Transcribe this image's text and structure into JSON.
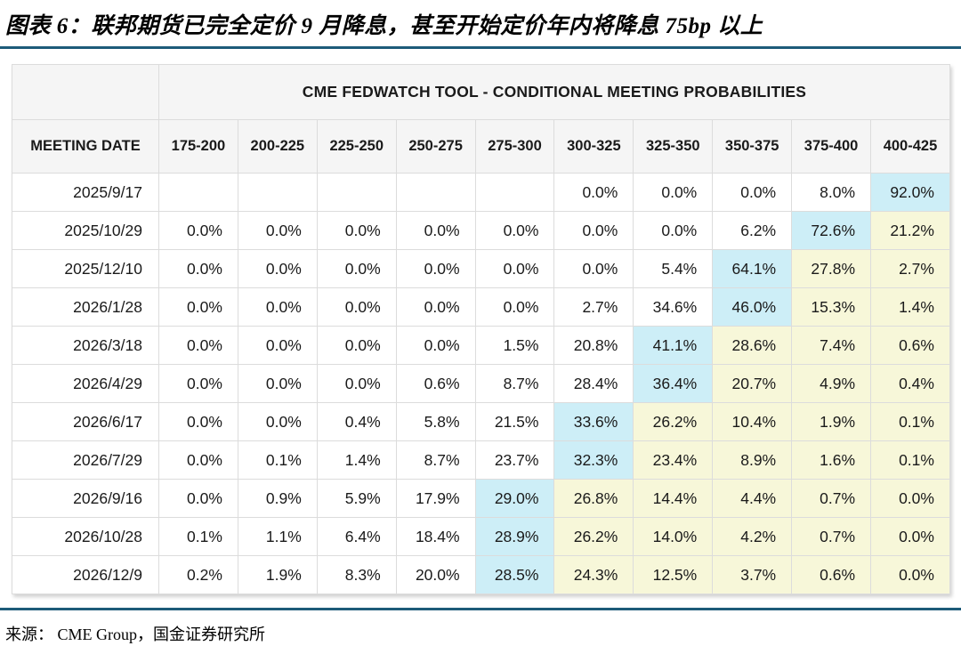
{
  "figure": {
    "title": "图表 6：联邦期货已完全定价 9 月降息，甚至开始定价年内将降息 75bp 以上",
    "source": "来源： CME Group，国金证券研究所"
  },
  "colors": {
    "accent_line": "#1d5b79",
    "header_bg": "#f5f5f5",
    "highlight_max": "#cdeef7",
    "highlight_tail": "#f7f7d9",
    "grid_line": "#dcdcdc"
  },
  "chart_data": {
    "type": "table",
    "title": "CME FEDWATCH TOOL - CONDITIONAL MEETING PROBABILITIES",
    "date_column_header": "MEETING DATE",
    "rate_columns": [
      "175-200",
      "200-225",
      "225-250",
      "250-275",
      "275-300",
      "300-325",
      "325-350",
      "350-375",
      "375-400",
      "400-425"
    ],
    "highlight_key": {
      "max": "highlight_max",
      "tail": "highlight_tail"
    },
    "rows": [
      {
        "date": "2025/9/17",
        "cells": [
          {
            "v": "",
            "hl": "none"
          },
          {
            "v": "",
            "hl": "none"
          },
          {
            "v": "",
            "hl": "none"
          },
          {
            "v": "",
            "hl": "none"
          },
          {
            "v": "",
            "hl": "none"
          },
          {
            "v": "0.0%",
            "hl": "none"
          },
          {
            "v": "0.0%",
            "hl": "none"
          },
          {
            "v": "0.0%",
            "hl": "none"
          },
          {
            "v": "8.0%",
            "hl": "none"
          },
          {
            "v": "92.0%",
            "hl": "max"
          }
        ]
      },
      {
        "date": "2025/10/29",
        "cells": [
          {
            "v": "0.0%",
            "hl": "none"
          },
          {
            "v": "0.0%",
            "hl": "none"
          },
          {
            "v": "0.0%",
            "hl": "none"
          },
          {
            "v": "0.0%",
            "hl": "none"
          },
          {
            "v": "0.0%",
            "hl": "none"
          },
          {
            "v": "0.0%",
            "hl": "none"
          },
          {
            "v": "0.0%",
            "hl": "none"
          },
          {
            "v": "6.2%",
            "hl": "none"
          },
          {
            "v": "72.6%",
            "hl": "max"
          },
          {
            "v": "21.2%",
            "hl": "tail"
          }
        ]
      },
      {
        "date": "2025/12/10",
        "cells": [
          {
            "v": "0.0%",
            "hl": "none"
          },
          {
            "v": "0.0%",
            "hl": "none"
          },
          {
            "v": "0.0%",
            "hl": "none"
          },
          {
            "v": "0.0%",
            "hl": "none"
          },
          {
            "v": "0.0%",
            "hl": "none"
          },
          {
            "v": "0.0%",
            "hl": "none"
          },
          {
            "v": "5.4%",
            "hl": "none"
          },
          {
            "v": "64.1%",
            "hl": "max"
          },
          {
            "v": "27.8%",
            "hl": "tail"
          },
          {
            "v": "2.7%",
            "hl": "tail"
          }
        ]
      },
      {
        "date": "2026/1/28",
        "cells": [
          {
            "v": "0.0%",
            "hl": "none"
          },
          {
            "v": "0.0%",
            "hl": "none"
          },
          {
            "v": "0.0%",
            "hl": "none"
          },
          {
            "v": "0.0%",
            "hl": "none"
          },
          {
            "v": "0.0%",
            "hl": "none"
          },
          {
            "v": "2.7%",
            "hl": "none"
          },
          {
            "v": "34.6%",
            "hl": "none"
          },
          {
            "v": "46.0%",
            "hl": "max"
          },
          {
            "v": "15.3%",
            "hl": "tail"
          },
          {
            "v": "1.4%",
            "hl": "tail"
          }
        ]
      },
      {
        "date": "2026/3/18",
        "cells": [
          {
            "v": "0.0%",
            "hl": "none"
          },
          {
            "v": "0.0%",
            "hl": "none"
          },
          {
            "v": "0.0%",
            "hl": "none"
          },
          {
            "v": "0.0%",
            "hl": "none"
          },
          {
            "v": "1.5%",
            "hl": "none"
          },
          {
            "v": "20.8%",
            "hl": "none"
          },
          {
            "v": "41.1%",
            "hl": "max"
          },
          {
            "v": "28.6%",
            "hl": "tail"
          },
          {
            "v": "7.4%",
            "hl": "tail"
          },
          {
            "v": "0.6%",
            "hl": "tail"
          }
        ]
      },
      {
        "date": "2026/4/29",
        "cells": [
          {
            "v": "0.0%",
            "hl": "none"
          },
          {
            "v": "0.0%",
            "hl": "none"
          },
          {
            "v": "0.0%",
            "hl": "none"
          },
          {
            "v": "0.6%",
            "hl": "none"
          },
          {
            "v": "8.7%",
            "hl": "none"
          },
          {
            "v": "28.4%",
            "hl": "none"
          },
          {
            "v": "36.4%",
            "hl": "max"
          },
          {
            "v": "20.7%",
            "hl": "tail"
          },
          {
            "v": "4.9%",
            "hl": "tail"
          },
          {
            "v": "0.4%",
            "hl": "tail"
          }
        ]
      },
      {
        "date": "2026/6/17",
        "cells": [
          {
            "v": "0.0%",
            "hl": "none"
          },
          {
            "v": "0.0%",
            "hl": "none"
          },
          {
            "v": "0.4%",
            "hl": "none"
          },
          {
            "v": "5.8%",
            "hl": "none"
          },
          {
            "v": "21.5%",
            "hl": "none"
          },
          {
            "v": "33.6%",
            "hl": "max"
          },
          {
            "v": "26.2%",
            "hl": "tail"
          },
          {
            "v": "10.4%",
            "hl": "tail"
          },
          {
            "v": "1.9%",
            "hl": "tail"
          },
          {
            "v": "0.1%",
            "hl": "tail"
          }
        ]
      },
      {
        "date": "2026/7/29",
        "cells": [
          {
            "v": "0.0%",
            "hl": "none"
          },
          {
            "v": "0.1%",
            "hl": "none"
          },
          {
            "v": "1.4%",
            "hl": "none"
          },
          {
            "v": "8.7%",
            "hl": "none"
          },
          {
            "v": "23.7%",
            "hl": "none"
          },
          {
            "v": "32.3%",
            "hl": "max"
          },
          {
            "v": "23.4%",
            "hl": "tail"
          },
          {
            "v": "8.9%",
            "hl": "tail"
          },
          {
            "v": "1.6%",
            "hl": "tail"
          },
          {
            "v": "0.1%",
            "hl": "tail"
          }
        ]
      },
      {
        "date": "2026/9/16",
        "cells": [
          {
            "v": "0.0%",
            "hl": "none"
          },
          {
            "v": "0.9%",
            "hl": "none"
          },
          {
            "v": "5.9%",
            "hl": "none"
          },
          {
            "v": "17.9%",
            "hl": "none"
          },
          {
            "v": "29.0%",
            "hl": "max"
          },
          {
            "v": "26.8%",
            "hl": "tail"
          },
          {
            "v": "14.4%",
            "hl": "tail"
          },
          {
            "v": "4.4%",
            "hl": "tail"
          },
          {
            "v": "0.7%",
            "hl": "tail"
          },
          {
            "v": "0.0%",
            "hl": "tail"
          }
        ]
      },
      {
        "date": "2026/10/28",
        "cells": [
          {
            "v": "0.1%",
            "hl": "none"
          },
          {
            "v": "1.1%",
            "hl": "none"
          },
          {
            "v": "6.4%",
            "hl": "none"
          },
          {
            "v": "18.4%",
            "hl": "none"
          },
          {
            "v": "28.9%",
            "hl": "max"
          },
          {
            "v": "26.2%",
            "hl": "tail"
          },
          {
            "v": "14.0%",
            "hl": "tail"
          },
          {
            "v": "4.2%",
            "hl": "tail"
          },
          {
            "v": "0.7%",
            "hl": "tail"
          },
          {
            "v": "0.0%",
            "hl": "tail"
          }
        ]
      },
      {
        "date": "2026/12/9",
        "cells": [
          {
            "v": "0.2%",
            "hl": "none"
          },
          {
            "v": "1.9%",
            "hl": "none"
          },
          {
            "v": "8.3%",
            "hl": "none"
          },
          {
            "v": "20.0%",
            "hl": "none"
          },
          {
            "v": "28.5%",
            "hl": "max"
          },
          {
            "v": "24.3%",
            "hl": "tail"
          },
          {
            "v": "12.5%",
            "hl": "tail"
          },
          {
            "v": "3.7%",
            "hl": "tail"
          },
          {
            "v": "0.6%",
            "hl": "tail"
          },
          {
            "v": "0.0%",
            "hl": "tail"
          }
        ]
      }
    ]
  }
}
